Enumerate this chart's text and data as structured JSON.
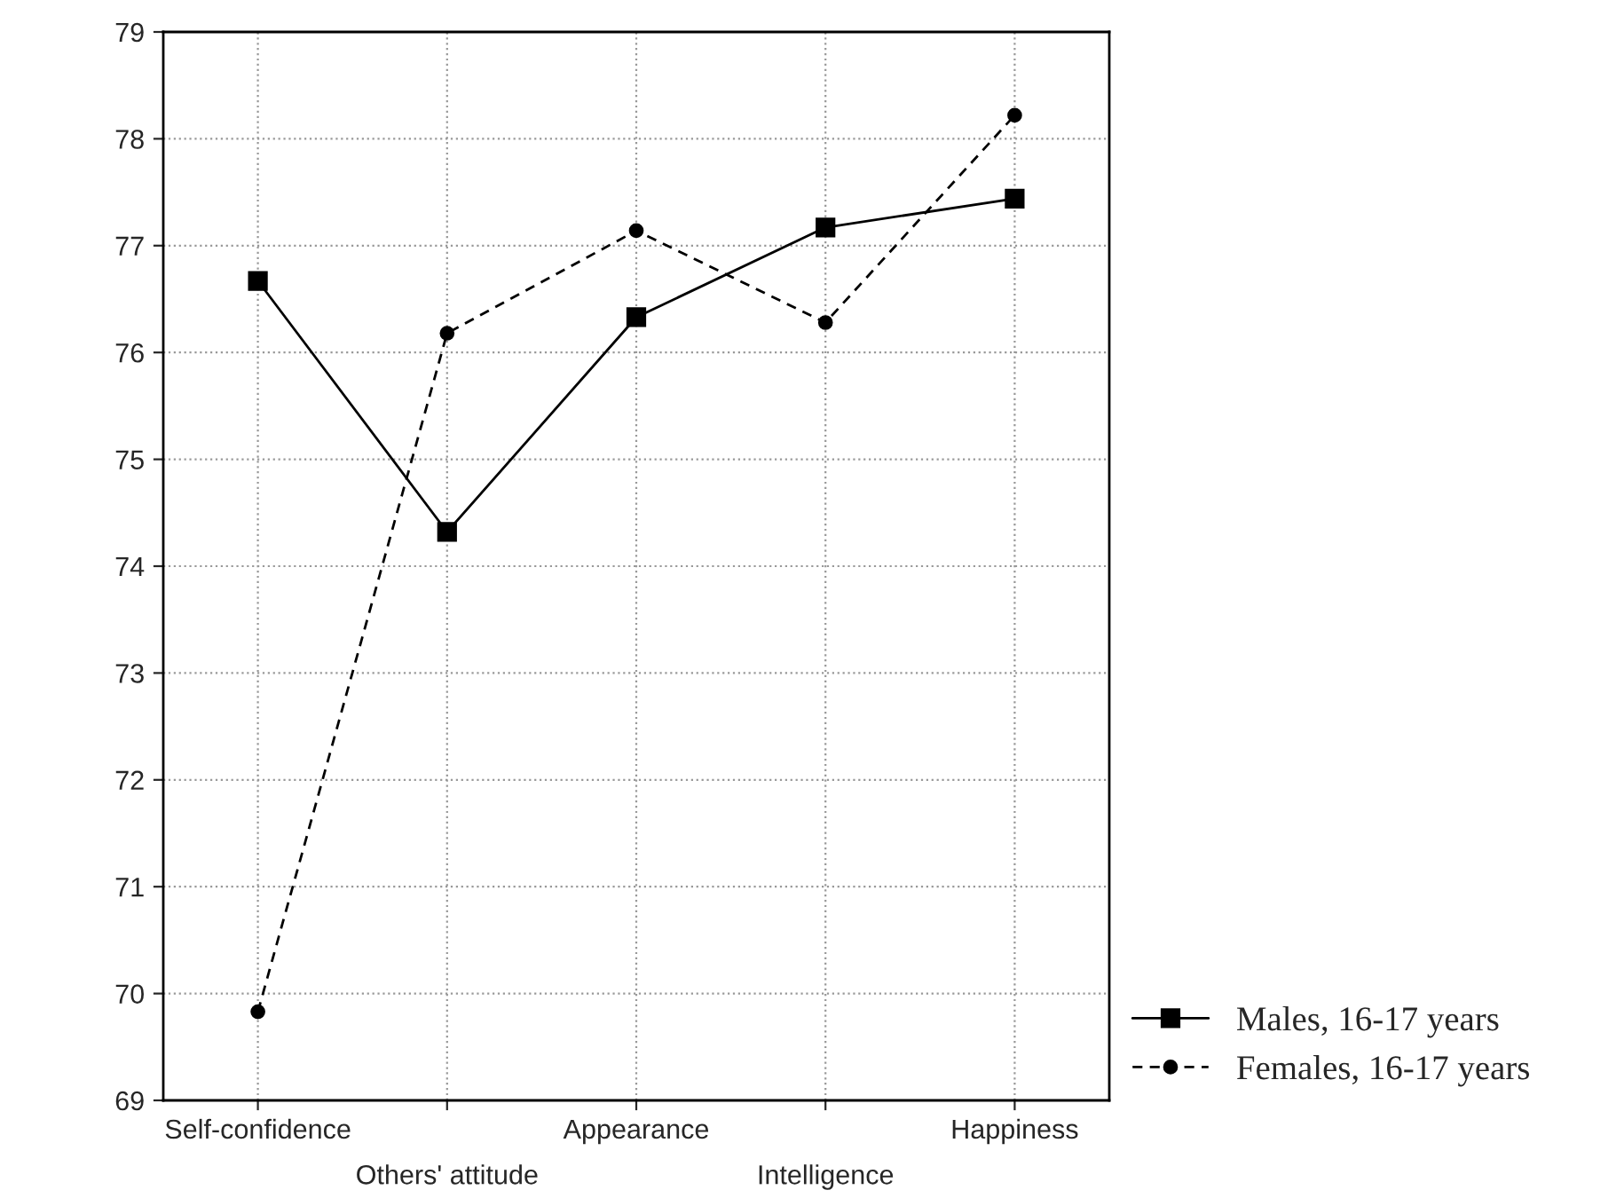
{
  "chart_data": {
    "type": "line",
    "categories": [
      "Self-confidence",
      "Others' attitude",
      "Appearance",
      "Intelligence",
      "Happiness"
    ],
    "series": [
      {
        "name": "Males, 16-17 years",
        "color": "#000000",
        "marker": "square",
        "line_style": "solid",
        "values": [
          76.67,
          74.32,
          76.33,
          77.17,
          77.44
        ]
      },
      {
        "name": "Females, 16-17 years",
        "color": "#000000",
        "marker": "circle",
        "line_style": "dashed",
        "values": [
          69.83,
          76.18,
          77.14,
          76.28,
          78.22
        ]
      }
    ],
    "ylim": [
      69,
      79
    ],
    "yticks": [
      69,
      70,
      71,
      72,
      73,
      74,
      75,
      76,
      77,
      78,
      79
    ],
    "grid": true,
    "legend": "bottom right"
  }
}
